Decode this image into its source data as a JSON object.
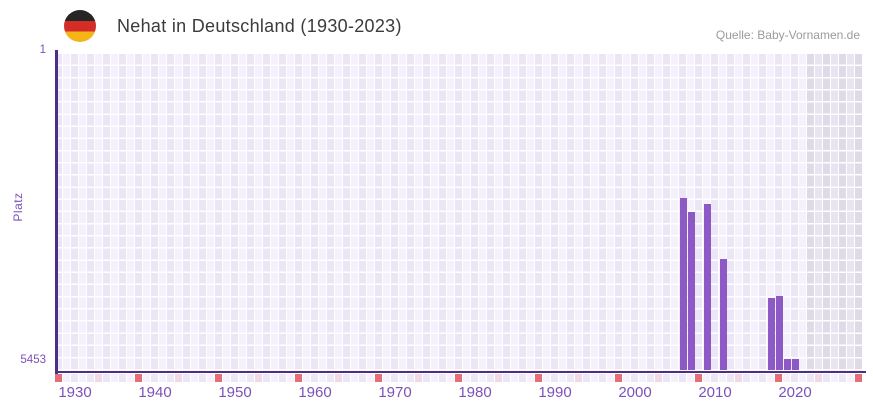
{
  "chart_data": {
    "type": "bar",
    "title": "Nehat in Deutschland (1930-2023)",
    "source": "Quelle: Baby-Vornamen.de",
    "ylabel": "Platz",
    "y_axis": {
      "min": 1,
      "max": 5453,
      "inverted": true,
      "top_tick": "1",
      "bottom_tick": "5453"
    },
    "x_axis": {
      "start_year": 1928,
      "end_year": 2028,
      "tick_years": [
        1930,
        1940,
        1950,
        1960,
        1970,
        1980,
        1990,
        2000,
        2010,
        2020
      ]
    },
    "series": [
      {
        "year": 2006,
        "rank": 2490
      },
      {
        "year": 2007,
        "rank": 2720
      },
      {
        "year": 2009,
        "rank": 2580
      },
      {
        "year": 2011,
        "rank": 3530
      },
      {
        "year": 2017,
        "rank": 4210
      },
      {
        "year": 2018,
        "rank": 4170
      },
      {
        "year": 2019,
        "rank": 5260
      },
      {
        "year": 2020,
        "rank": 5260
      }
    ],
    "marker_strip": {
      "red_years": [
        1928,
        1938,
        1948,
        1958,
        1968,
        1978,
        1988,
        1998,
        2008,
        2018,
        2028
      ],
      "pink_years": [
        1933,
        1943,
        1953,
        1963,
        1973,
        1983,
        1993,
        2003,
        2013,
        2023
      ]
    },
    "shaded_from_year": 2022,
    "legend": null,
    "grid": true,
    "colors": {
      "bar": "#8c59c5",
      "axis": "#4a2f85",
      "tick_label": "#7c51b8",
      "marker_red": "#e26e77",
      "marker_pink": "#f2d8e2",
      "cell_even": "#ebe5f5",
      "cell_odd": "#f5f1fb",
      "cell_even_shaded": "#dedae8",
      "cell_odd_shaded": "#e8e4f0",
      "title_text": "#3b3b3b",
      "source_text": "#9b9b9b",
      "flag_black": "#262626",
      "flag_red": "#d42d27",
      "flag_gold": "#f3b517"
    }
  }
}
